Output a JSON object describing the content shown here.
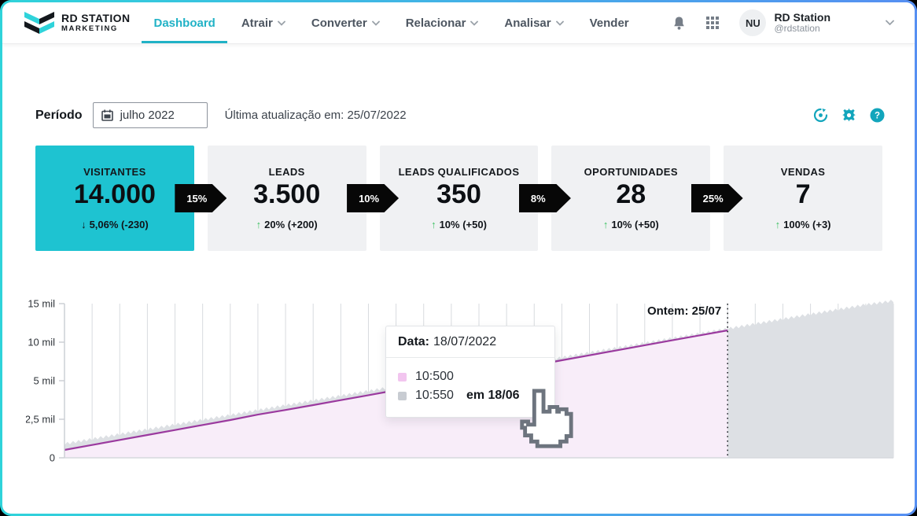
{
  "header": {
    "brand": {
      "line1": "RD STATION",
      "line2": "MARKETING"
    },
    "nav": [
      {
        "label": "Dashboard",
        "caret": false,
        "active": true
      },
      {
        "label": "Atrair",
        "caret": true
      },
      {
        "label": "Converter",
        "caret": true
      },
      {
        "label": "Relacionar",
        "caret": true
      },
      {
        "label": "Analisar",
        "caret": true
      },
      {
        "label": "Vender",
        "caret": false
      }
    ],
    "icons": [
      "bell-icon",
      "app-grid-icon"
    ],
    "user": {
      "initials": "NU",
      "name": "RD Station",
      "handle": "@rdstation"
    }
  },
  "toolbar": {
    "period_label": "Período",
    "period_value": "julho 2022",
    "last_update": "Última atualização em: 25/07/2022",
    "icons": [
      "goal-icon",
      "settings-icon",
      "help-icon"
    ]
  },
  "funnel": {
    "cards": [
      {
        "title": "VISITANTES",
        "value": "14.000",
        "arrow": "↓",
        "delta": "5,06% (-230)",
        "direction": "down",
        "highlight": true
      },
      {
        "title": "LEADS",
        "value": "3.500",
        "arrow": "↑",
        "delta": "20% (+200)",
        "direction": "up",
        "highlight": false
      },
      {
        "title": "LEADS QUALIFICADOS",
        "value": "350",
        "arrow": "↑",
        "delta": "10% (+50)",
        "direction": "up",
        "highlight": false
      },
      {
        "title": "OPORTUNIDADES",
        "value": "28",
        "arrow": "↑",
        "delta": "10% (+50)",
        "direction": "up",
        "highlight": false
      },
      {
        "title": "VENDAS",
        "value": "7",
        "arrow": "↑",
        "delta": "100% (+3)",
        "direction": "up",
        "highlight": false
      }
    ],
    "conversions": [
      "15%",
      "10%",
      "8%",
      "25%"
    ]
  },
  "tooltip": {
    "title_label": "Data:",
    "title_value": "18/07/2022",
    "rows": [
      {
        "swatch": "#f2c5ef",
        "value": "10:500",
        "suffix": ""
      },
      {
        "swatch": "#c8ccd2",
        "value": "10:550",
        "suffix": "em 18/06"
      }
    ]
  },
  "chart_data": {
    "type": "area",
    "title": "",
    "x_unit": "days of july 2022 (daily gridlines, no x tick labels)",
    "days": 31,
    "cutoff_day": 25,
    "annotation": {
      "text": "Ontem: 25/07",
      "day": 25
    },
    "yticks": {
      "labels": [
        "0",
        "2,5 mil",
        "5 mil",
        "10 mil",
        "15 mil"
      ],
      "values": [
        0,
        2500,
        5000,
        10000,
        15000
      ]
    },
    "grid": "vertical-daily",
    "legend_position": "none",
    "series": [
      {
        "name": "visitantes-periodo-atual",
        "line_color": "#9b3a9f",
        "fill_color": "#f8edf9",
        "values": [
          510,
          830,
          1160,
          1480,
          1800,
          2130,
          2450,
          2800,
          3100,
          3420,
          3740,
          4060,
          4390,
          4730,
          5070,
          5710,
          6360,
          7000,
          7650,
          8300,
          8950,
          9600,
          10240,
          10890,
          11530
        ]
      },
      {
        "name": "visitantes-comparativo",
        "line_color": "#dde0e4",
        "fill_color": "#dde0e4",
        "values": [
          820,
          1130,
          1440,
          1750,
          2060,
          2370,
          2680,
          3000,
          3310,
          3620,
          3930,
          4240,
          4550,
          4860,
          5350,
          5970,
          6590,
          7210,
          7840,
          8460,
          9080,
          9700,
          10330,
          10950,
          11570,
          12190,
          12820,
          13440,
          14060,
          14680,
          15200
        ]
      }
    ],
    "colors": {
      "gridline": "#d8dbdf",
      "axis": "#c9cdd3",
      "cutoff_line": "#24282e",
      "annotation_text": "#12161b"
    }
  },
  "colors": {
    "accent_teal": "#21b2c6",
    "card_teal": "#1ec3d1",
    "positive_green": "#3fc164",
    "icon_teal": "#12a5bc",
    "border_gradient_left": "#2fd3da",
    "border_gradient_right": "#568ff2"
  }
}
